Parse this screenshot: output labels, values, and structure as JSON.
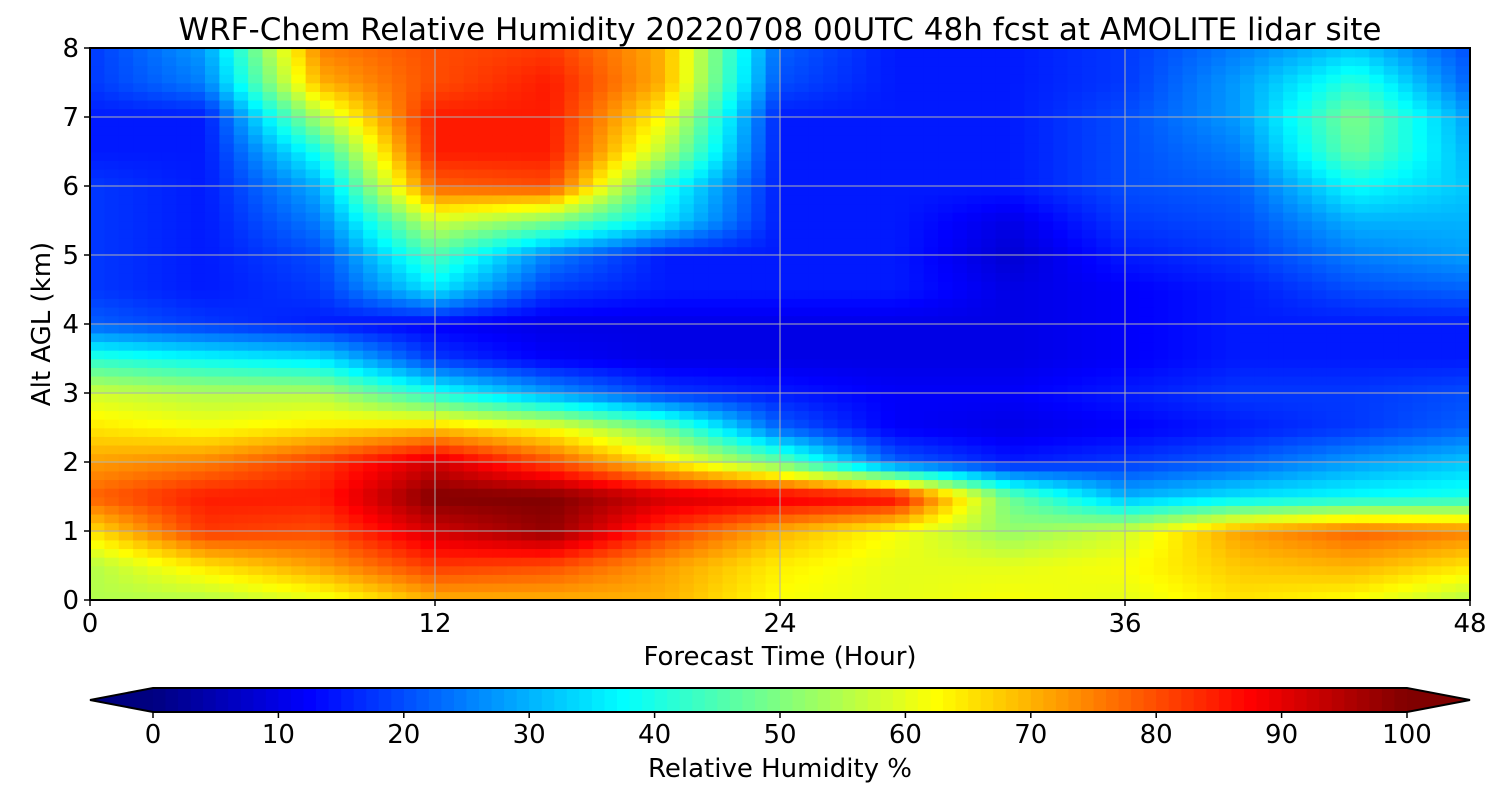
{
  "chart_data": {
    "type": "heatmap",
    "title": "WRF-Chem Relative Humidity 20220708 00UTC 48h fcst at AMOLITE lidar site",
    "xlabel": "Forecast Time (Hour)",
    "ylabel": "Alt AGL (km)",
    "xlim": [
      0,
      48
    ],
    "ylim": [
      0,
      8
    ],
    "x_ticks": [
      0,
      12,
      24,
      36,
      48
    ],
    "y_ticks": [
      0,
      1,
      2,
      3,
      4,
      5,
      6,
      7,
      8
    ],
    "grid": true,
    "colormap": "jet",
    "colorbar": {
      "label": "Relative Humidity %",
      "range": [
        0,
        100
      ],
      "ticks": [
        0,
        10,
        20,
        30,
        40,
        50,
        60,
        70,
        80,
        90,
        100
      ],
      "extend": "both",
      "orientation": "horizontal",
      "placement": "bottom"
    },
    "x": [
      0,
      4,
      8,
      12,
      16,
      20,
      24,
      28,
      32,
      36,
      40,
      44,
      48
    ],
    "y": [
      0,
      0.5,
      1,
      1.5,
      2,
      2.5,
      3,
      3.5,
      4,
      4.5,
      5,
      5.5,
      6,
      6.5,
      7,
      7.5,
      8
    ],
    "z": [
      [
        55,
        55,
        60,
        70,
        70,
        70,
        62,
        60,
        62,
        60,
        65,
        62,
        55
      ],
      [
        55,
        65,
        72,
        82,
        80,
        72,
        64,
        60,
        60,
        62,
        68,
        70,
        65
      ],
      [
        65,
        82,
        80,
        92,
        98,
        82,
        70,
        62,
        52,
        58,
        72,
        78,
        75
      ],
      [
        78,
        85,
        85,
        100,
        100,
        92,
        90,
        88,
        48,
        30,
        35,
        38,
        40
      ],
      [
        72,
        75,
        82,
        92,
        80,
        65,
        48,
        22,
        15,
        18,
        22,
        28,
        32
      ],
      [
        65,
        62,
        65,
        68,
        62,
        48,
        22,
        12,
        10,
        12,
        15,
        18,
        22
      ],
      [
        58,
        55,
        55,
        40,
        28,
        18,
        15,
        12,
        12,
        15,
        18,
        18,
        20
      ],
      [
        42,
        38,
        35,
        18,
        12,
        10,
        10,
        10,
        10,
        12,
        15,
        15,
        15
      ],
      [
        22,
        18,
        15,
        12,
        10,
        10,
        10,
        10,
        10,
        12,
        15,
        15,
        15
      ],
      [
        18,
        15,
        18,
        35,
        18,
        15,
        15,
        15,
        10,
        12,
        15,
        20,
        22
      ],
      [
        18,
        15,
        20,
        45,
        25,
        15,
        15,
        15,
        8,
        15,
        18,
        25,
        28
      ],
      [
        18,
        15,
        25,
        58,
        50,
        35,
        15,
        15,
        10,
        18,
        20,
        30,
        30
      ],
      [
        18,
        15,
        30,
        78,
        80,
        40,
        15,
        15,
        15,
        20,
        22,
        38,
        32
      ],
      [
        15,
        15,
        40,
        85,
        85,
        55,
        15,
        15,
        15,
        20,
        25,
        48,
        30
      ],
      [
        15,
        15,
        55,
        85,
        85,
        62,
        15,
        15,
        15,
        20,
        28,
        50,
        28
      ],
      [
        18,
        25,
        70,
        80,
        85,
        70,
        20,
        15,
        15,
        18,
        28,
        42,
        22
      ],
      [
        18,
        28,
        75,
        80,
        82,
        70,
        22,
        15,
        15,
        18,
        25,
        32,
        20
      ]
    ]
  }
}
